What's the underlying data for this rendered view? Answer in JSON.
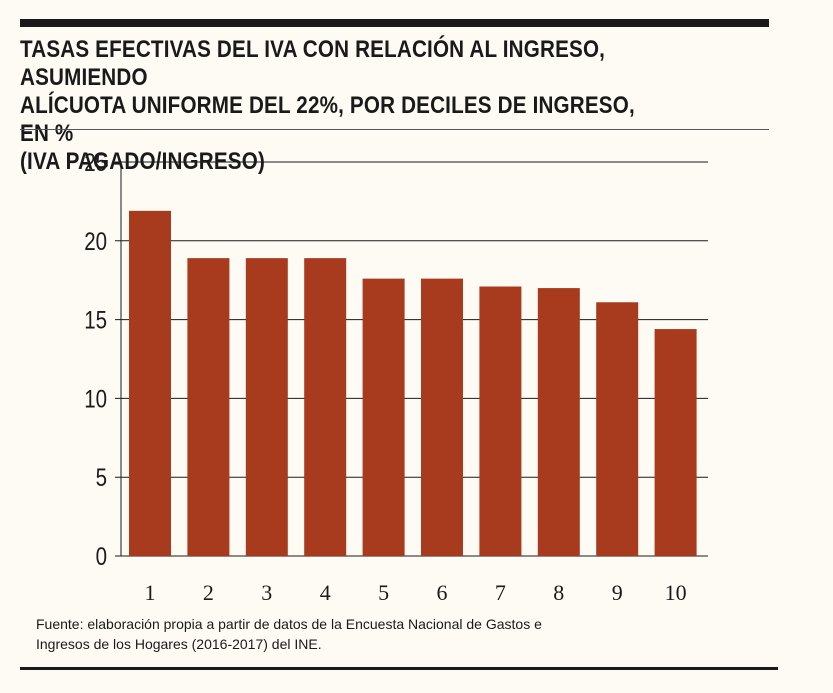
{
  "header": {
    "title": "TASAS EFECTIVAS DEL IVA CON RELACIÓN AL INGRESO, ASUMIENDO\nALÍCUOTA UNIFORME DEL 22%, POR DECILES DE INGRESO, EN %\n(IVA PAGADO/INGRESO)"
  },
  "footer": {
    "source": "Fuente: elaboración propia a partir de datos de la Encuesta Nacional de Gastos e Ingresos de los Hogares (2016-2017) del INE."
  },
  "colors": {
    "bar": "#a83a1d",
    "grid": "#1a1a1a",
    "background": "#fdfbf3",
    "text": "#1a1a1a"
  },
  "chart_data": {
    "type": "bar",
    "title": "TASAS EFECTIVAS DEL IVA CON RELACIÓN AL INGRESO, ASUMIENDO ALÍCUOTA UNIFORME DEL 22%, POR DECILES DE INGRESO, EN % (IVA PAGADO/INGRESO)",
    "xlabel": "",
    "ylabel": "",
    "categories": [
      "1",
      "2",
      "3",
      "4",
      "5",
      "6",
      "7",
      "8",
      "9",
      "10"
    ],
    "values": [
      21.9,
      18.9,
      18.9,
      18.9,
      17.6,
      17.6,
      17.1,
      17.0,
      16.1,
      14.4
    ],
    "ylim": [
      0,
      25
    ],
    "yticks": [
      0,
      5,
      10,
      15,
      20,
      25
    ],
    "grid": true,
    "legend": "none"
  }
}
